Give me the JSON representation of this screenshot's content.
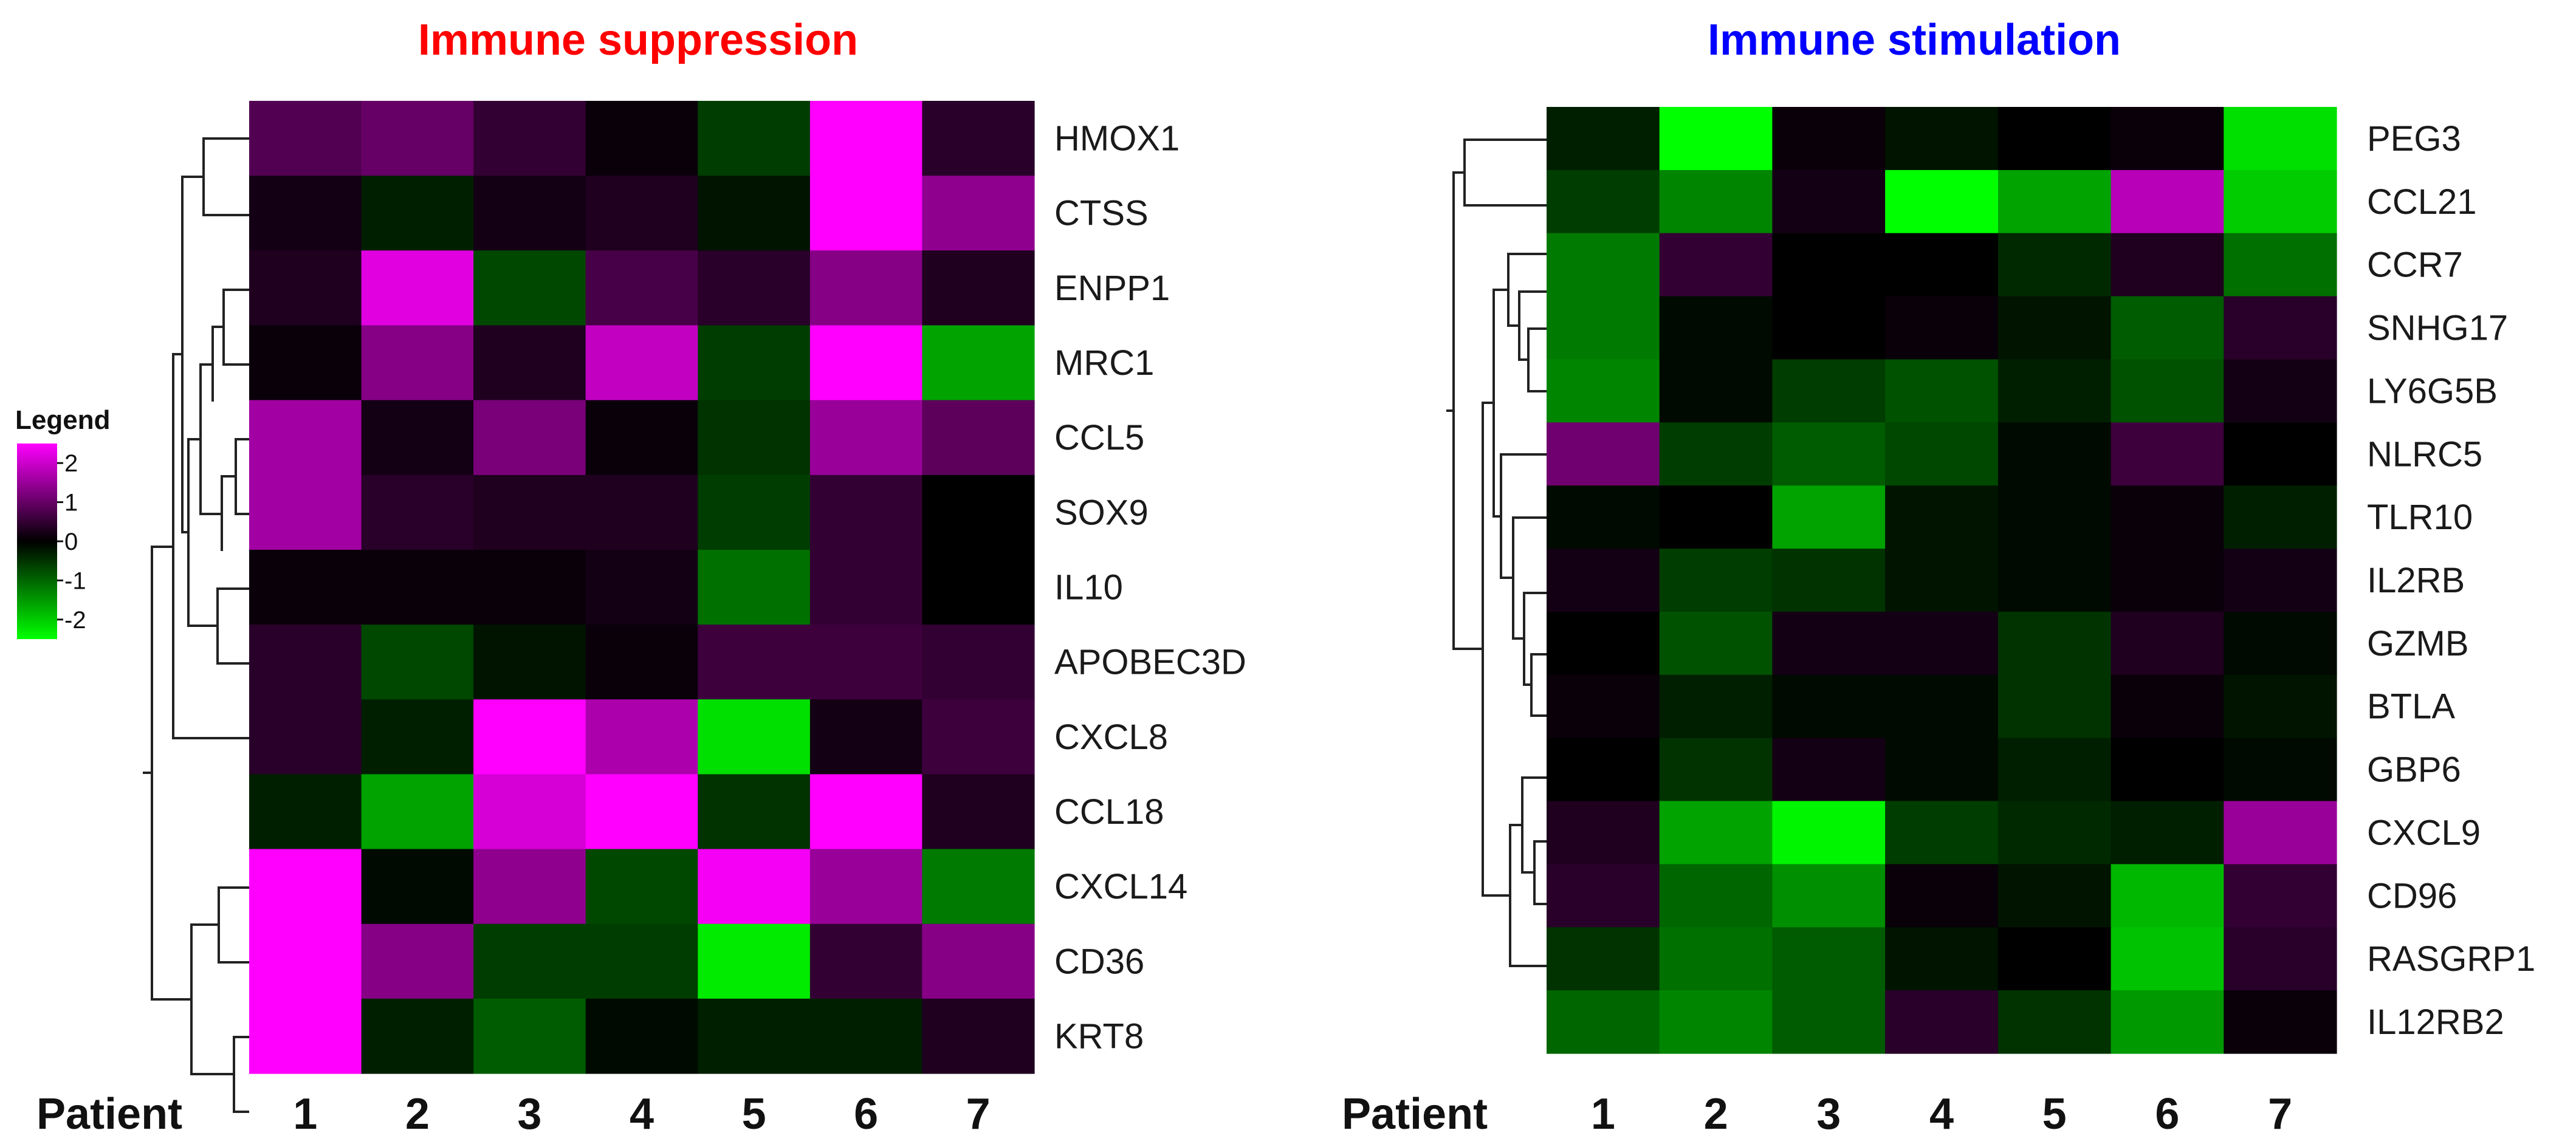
{
  "chart_data": [
    {
      "type": "heatmap",
      "title": "Immune suppression",
      "title_color": "#ff0000",
      "xlabel": "Patient",
      "columns": [
        "1",
        "2",
        "3",
        "4",
        "5",
        "6",
        "7"
      ],
      "rows": [
        "HMOX1",
        "CTSS",
        "ENPP1",
        "MRC1",
        "CCL5",
        "SOX9",
        "IL10",
        "APOBEC3D",
        "CXCL8",
        "CCL18",
        "CXCL14",
        "CD36",
        "KRT8"
      ],
      "values": [
        [
          0.8,
          1.0,
          0.5,
          0.1,
          -0.6,
          2.5,
          0.4
        ],
        [
          0.2,
          -0.3,
          0.2,
          0.3,
          -0.2,
          2.5,
          1.4
        ],
        [
          0.3,
          2.2,
          -0.7,
          0.7,
          0.4,
          1.3,
          0.3
        ],
        [
          0.1,
          1.3,
          0.3,
          1.9,
          -0.6,
          2.5,
          -1.6
        ],
        [
          1.6,
          0.2,
          1.2,
          0.1,
          -0.5,
          1.5,
          0.9
        ],
        [
          1.6,
          0.4,
          0.3,
          0.3,
          -0.6,
          0.5,
          0.0
        ],
        [
          0.1,
          0.1,
          0.1,
          0.2,
          -1.1,
          0.5,
          0.0
        ],
        [
          0.4,
          -0.7,
          -0.2,
          0.1,
          0.6,
          0.6,
          0.5
        ],
        [
          0.4,
          -0.3,
          2.5,
          1.7,
          -2.2,
          0.2,
          0.6
        ],
        [
          -0.3,
          -1.6,
          2.1,
          2.5,
          -0.5,
          2.5,
          0.3
        ],
        [
          2.5,
          -0.1,
          1.4,
          -0.7,
          2.4,
          1.5,
          -1.2
        ],
        [
          2.5,
          1.3,
          -0.6,
          -0.6,
          -2.3,
          0.5,
          1.3
        ],
        [
          2.5,
          -0.3,
          -0.9,
          -0.1,
          -0.3,
          -0.3,
          0.3
        ]
      ],
      "color_scale": {
        "min": -2.5,
        "max": 2.5,
        "low": "#00ff00",
        "mid": "#000000",
        "high": "#ff00ff"
      },
      "legend": {
        "title": "Legend",
        "ticks": [
          "2",
          "1",
          "0",
          "-1",
          "-2"
        ],
        "placement": "left"
      },
      "dendrogram": "rows, left side"
    },
    {
      "type": "heatmap",
      "title": "Immune stimulation",
      "title_color": "#0000ff",
      "xlabel": "Patient",
      "columns": [
        "1",
        "2",
        "3",
        "4",
        "5",
        "6",
        "7"
      ],
      "rows": [
        "PEG3",
        "CCL21",
        "CCR7",
        "SNHG17",
        "LY6G5B",
        "NLRC5",
        "TLR10",
        "IL2RB",
        "GZMB",
        "BTLA",
        "GBP6",
        "CXCL9",
        "CD96",
        "RASGRP1",
        "IL12RB2"
      ],
      "values": [
        [
          -0.3,
          -2.5,
          0.1,
          -0.2,
          0.0,
          0.1,
          -2.2
        ],
        [
          -0.6,
          -1.3,
          0.2,
          -2.5,
          -1.6,
          1.8,
          -2.0
        ],
        [
          -1.2,
          0.5,
          0.0,
          0.0,
          -0.4,
          0.3,
          -1.1
        ],
        [
          -1.2,
          -0.1,
          0.0,
          0.1,
          -0.2,
          -0.9,
          0.4
        ],
        [
          -1.3,
          -0.1,
          -0.6,
          -0.8,
          -0.3,
          -0.8,
          0.2
        ],
        [
          1.1,
          -0.6,
          -0.9,
          -0.7,
          -0.1,
          0.6,
          0.0
        ],
        [
          -0.1,
          0.0,
          -1.6,
          -0.2,
          -0.1,
          0.1,
          -0.3
        ],
        [
          0.2,
          -0.6,
          -0.5,
          -0.2,
          -0.1,
          0.1,
          0.2
        ],
        [
          0.0,
          -0.8,
          0.2,
          0.2,
          -0.5,
          0.3,
          -0.1
        ],
        [
          0.1,
          -0.3,
          -0.1,
          -0.1,
          -0.5,
          0.1,
          -0.2
        ],
        [
          0.0,
          -0.5,
          0.2,
          -0.1,
          -0.3,
          0.0,
          -0.1
        ],
        [
          0.3,
          -1.6,
          -2.4,
          -0.6,
          -0.4,
          -0.3,
          1.5
        ],
        [
          0.4,
          -1.0,
          -1.4,
          0.1,
          -0.2,
          -1.8,
          0.5
        ],
        [
          -0.5,
          -1.1,
          -0.9,
          -0.2,
          0.0,
          -1.9,
          0.4
        ],
        [
          -1.0,
          -1.3,
          -0.9,
          0.4,
          -0.5,
          -1.5,
          0.1
        ]
      ],
      "color_scale": {
        "min": -2.5,
        "max": 2.5,
        "low": "#00ff00",
        "mid": "#000000",
        "high": "#ff00ff"
      },
      "dendrogram": "rows, left side"
    }
  ]
}
